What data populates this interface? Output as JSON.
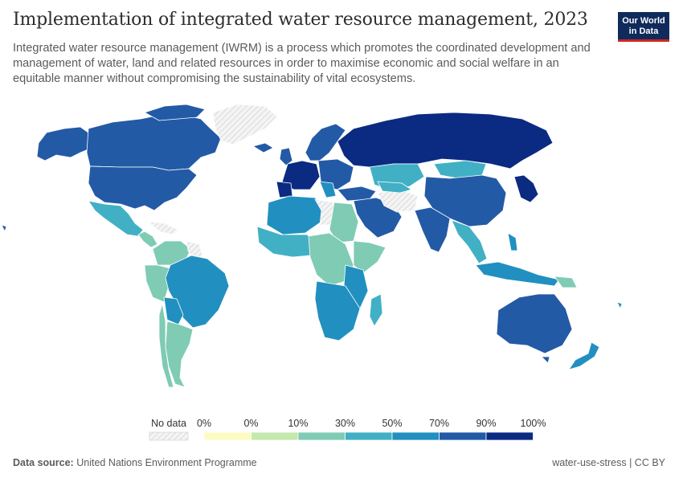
{
  "header": {
    "title": "Implementation of integrated water resource management, 2023",
    "subtitle": "Integrated water resource management (IWRM) is a process which promotes the coordinated development and management of water, land and related resources in order to maximise economic and social welfare in an equitable manner without compromising the sustainability of vital ecosystems."
  },
  "logo": {
    "line1": "Our World",
    "line2": "in Data"
  },
  "legend": {
    "no_data_label": "No data",
    "bins": [
      {
        "label": "0%",
        "color": "#fdfbc1"
      },
      {
        "label": "0%",
        "color": "#c4e8ad"
      },
      {
        "label": "10%",
        "color": "#7fcbb4"
      },
      {
        "label": "30%",
        "color": "#41b0c5"
      },
      {
        "label": "50%",
        "color": "#2190c0"
      },
      {
        "label": "70%",
        "color": "#235aa6"
      },
      {
        "label": "90%",
        "color": "#0b2a82"
      }
    ],
    "last_label": "100%"
  },
  "colors": {
    "no_data": "#e3e3e3",
    "border": "#ffffff"
  },
  "footer": {
    "source_label": "Data source:",
    "source_value": "United Nations Environment Programme",
    "right": "water-use-stress | CC BY"
  }
}
